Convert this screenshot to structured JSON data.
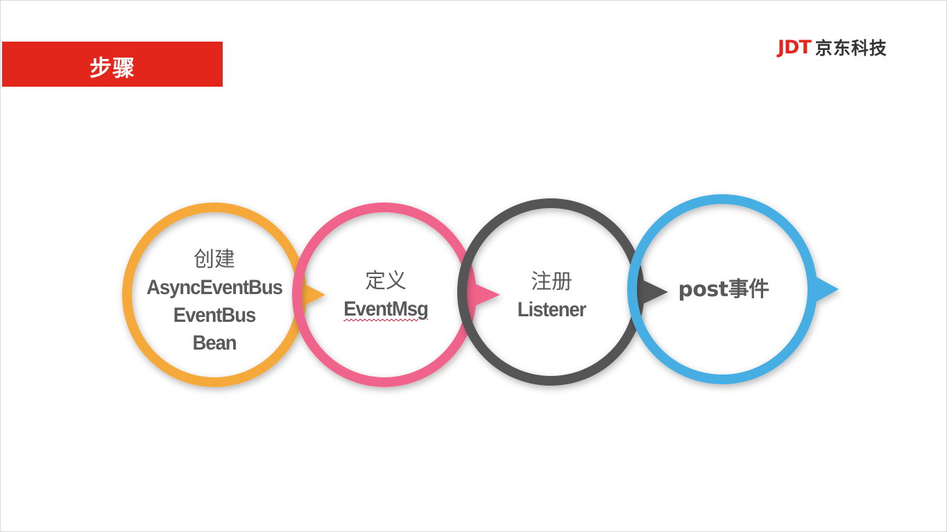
{
  "title": "步骤",
  "logo": {
    "mark": "JDT",
    "name": "京东科技"
  },
  "steps": [
    {
      "title": "创建",
      "lines": [
        "AsyncEventBus",
        "EventBus",
        "Bean"
      ],
      "color": "#f5a93b"
    },
    {
      "title": "定义",
      "lines": [
        "EventMsg"
      ],
      "color": "#f0648a"
    },
    {
      "title": "注册",
      "lines": [
        "Listener"
      ],
      "color": "#555555"
    },
    {
      "title": "post事件",
      "lines": [],
      "color": "#46aee3"
    }
  ]
}
